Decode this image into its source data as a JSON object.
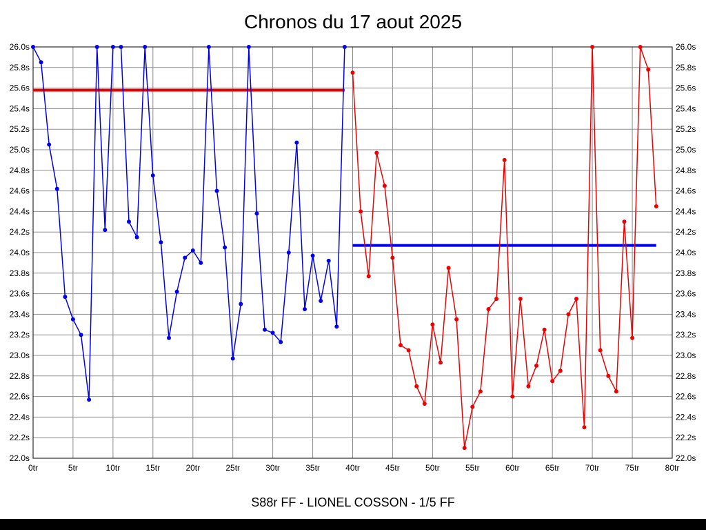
{
  "title": "Chronos du 17 aout 2025",
  "caption": "S88r FF - LIONEL COSSON - 1/5 FF",
  "colors": {
    "series_blue": "#0000ee",
    "series_red": "#ee0000",
    "grid": "#8c8c8c",
    "axis_border": "#000000",
    "background": "#ffffff",
    "bottom_bar": "#000000"
  },
  "chart_data": {
    "type": "line",
    "title": "Chronos du 17 aout 2025",
    "xlabel": "",
    "ylabel": "",
    "x_unit": "tr",
    "y_unit": "s",
    "xlim": [
      0,
      80
    ],
    "ylim": [
      22.0,
      26.0
    ],
    "x_tick_step": 5,
    "y_tick_step": 0.2,
    "grid": true,
    "grid_color": "#8c8c8c",
    "y_labels_both_sides": true,
    "legend": "none",
    "series": [
      {
        "name": "run-1-blue",
        "color": "#0000ee",
        "x_start": 0,
        "values": [
          26.0,
          25.85,
          25.05,
          24.62,
          23.57,
          23.35,
          23.2,
          22.57,
          26.0,
          24.22,
          26.0,
          26.0,
          24.3,
          24.15,
          26.0,
          24.75,
          24.1,
          23.17,
          23.62,
          23.95,
          24.02,
          23.9,
          26.0,
          24.6,
          24.05,
          22.97,
          23.5,
          26.0,
          24.38,
          23.25,
          23.22,
          23.13,
          24.0,
          25.07,
          23.45,
          23.97,
          23.53,
          23.92,
          23.28,
          26.0
        ]
      },
      {
        "name": "run-2-red",
        "color": "#ee0000",
        "x_start": 40,
        "values": [
          25.75,
          24.4,
          23.77,
          24.97,
          24.65,
          23.95,
          23.1,
          23.05,
          22.7,
          22.53,
          23.3,
          22.93,
          23.85,
          23.35,
          22.1,
          22.5,
          22.65,
          23.45,
          23.55,
          24.9,
          22.6,
          23.55,
          22.7,
          22.9,
          23.25,
          22.75,
          22.85,
          23.4,
          23.55,
          22.3,
          26.0,
          23.05,
          22.8,
          22.65,
          24.3,
          23.17,
          26.0,
          25.78,
          24.45
        ]
      }
    ],
    "reference_lines": [
      {
        "name": "red-reference-line",
        "color": "#ee0000",
        "value": 25.58,
        "x_from": 0,
        "x_to": 39
      },
      {
        "name": "blue-reference-line",
        "color": "#0000ee",
        "value": 24.07,
        "x_from": 40,
        "x_to": 78
      }
    ]
  }
}
